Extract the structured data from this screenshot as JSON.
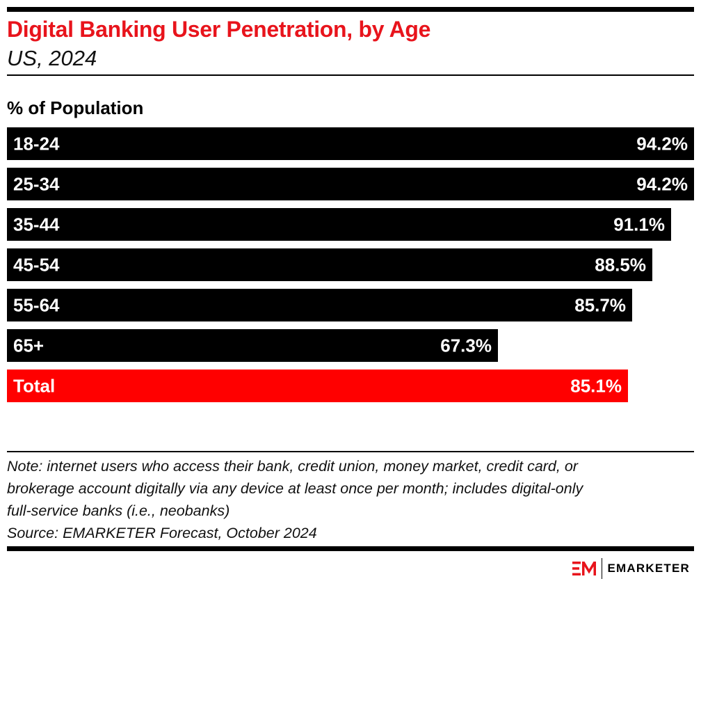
{
  "header": {
    "title": "Digital Banking User Penetration, by Age",
    "subtitle": "US, 2024"
  },
  "chart_data": {
    "type": "bar",
    "orientation": "horizontal",
    "unit_label": "% of Population",
    "categories": [
      "18-24",
      "25-34",
      "35-44",
      "45-54",
      "55-64",
      "65+",
      "Total"
    ],
    "values": [
      94.2,
      94.2,
      91.1,
      88.5,
      85.7,
      67.3,
      85.1
    ],
    "value_labels": [
      "94.2%",
      "94.2%",
      "91.1%",
      "88.5%",
      "85.7%",
      "67.3%",
      "85.1%"
    ],
    "xlim": [
      0,
      94.2
    ],
    "grid": false,
    "colors": {
      "default": "#000000",
      "highlight": "#ff0000",
      "highlight_category": "Total",
      "label_inside": "#ffffff",
      "label_outside": "#000000"
    }
  },
  "footer": {
    "note_lines": [
      "Note: internet users who access their bank, credit union, money market, credit card, or",
      "brokerage account digitally via any device at least once per month; includes digital-only",
      "full-service banks (i.e., neobanks)"
    ],
    "source": "Source: EMARKETER Forecast, October 2024",
    "brand": "EMARKETER",
    "brand_color": "#e8141c"
  }
}
